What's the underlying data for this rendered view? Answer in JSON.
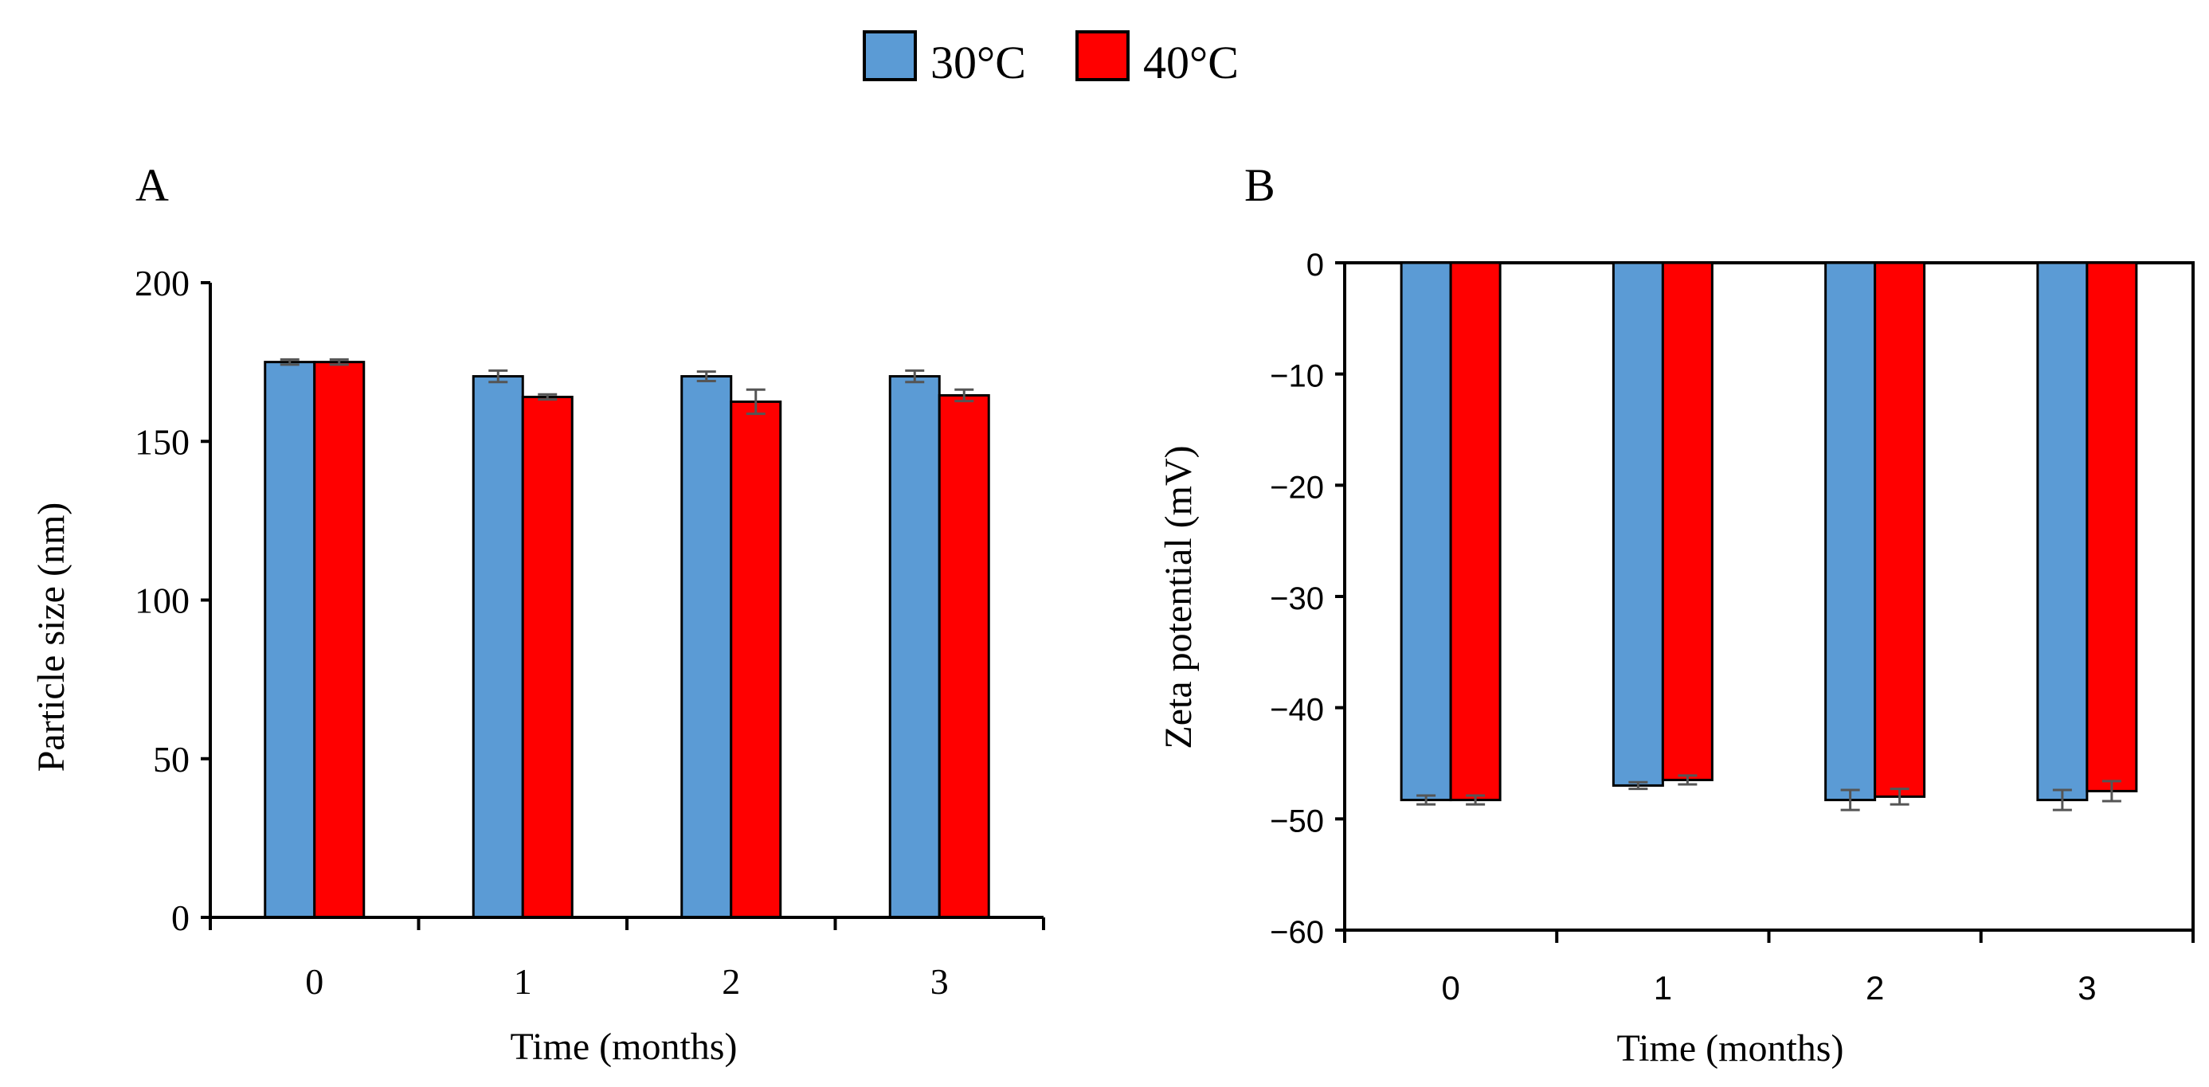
{
  "legend": {
    "entries": [
      {
        "label": "30°C",
        "color": "#5b9bd5"
      },
      {
        "label": "40°C",
        "color": "#ff0000"
      }
    ],
    "placement": "top-center"
  },
  "chart_data": [
    {
      "type": "bar",
      "panel_label": "A",
      "title": "",
      "xlabel": "Time (months)",
      "ylabel": "Particle size (nm)",
      "categories": [
        "0",
        "1",
        "2",
        "3"
      ],
      "ylim": [
        0,
        200
      ],
      "yticks": [
        0,
        50,
        100,
        150,
        200
      ],
      "grid": false,
      "series": [
        {
          "name": "30°C",
          "color": "#5b9bd5",
          "values": [
            175,
            170.5,
            170.5,
            170.5
          ],
          "errors": [
            0.8,
            1.8,
            1.5,
            1.8
          ]
        },
        {
          "name": "40°C",
          "color": "#ff0000",
          "values": [
            175,
            164,
            162.5,
            164.5
          ],
          "errors": [
            0.8,
            0.8,
            3.8,
            1.8
          ]
        }
      ]
    },
    {
      "type": "bar",
      "panel_label": "B",
      "title": "",
      "xlabel": "Time (months)",
      "ylabel": "Zeta potential (mV)",
      "categories": [
        "0",
        "1",
        "2",
        "3"
      ],
      "ylim": [
        -60,
        0
      ],
      "yticks": [
        0,
        -10,
        -20,
        -30,
        -40,
        -50,
        -60
      ],
      "grid": false,
      "series": [
        {
          "name": "30°C",
          "color": "#5b9bd5",
          "values": [
            -48.3,
            -47,
            -48.3,
            -48.3
          ],
          "errors": [
            0.4,
            0.3,
            0.9,
            0.9
          ]
        },
        {
          "name": "40°C",
          "color": "#ff0000",
          "values": [
            -48.3,
            -46.5,
            -48,
            -47.5
          ],
          "errors": [
            0.4,
            0.4,
            0.7,
            0.9
          ]
        }
      ]
    }
  ]
}
